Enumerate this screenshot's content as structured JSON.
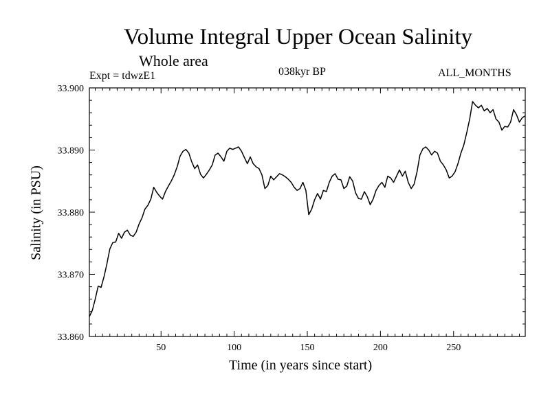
{
  "chart_data": {
    "type": "line",
    "title": "Volume Integral Upper Ocean Salinity",
    "subtitle": "Whole area",
    "experiment": "Expt = tdwzE1",
    "period": "038kyr BP",
    "months": "ALL_MONTHS",
    "xlabel": "Time (in years since start)",
    "ylabel": "Salinity (in PSU)",
    "xlim": [
      1,
      299
    ],
    "ylim": [
      33.86,
      33.9
    ],
    "x_ticks": [
      50,
      100,
      150,
      200,
      250
    ],
    "x_tick_labels": [
      "50",
      "100",
      "150",
      "200",
      "250"
    ],
    "y_ticks": [
      33.86,
      33.87,
      33.88,
      33.89,
      33.9
    ],
    "y_tick_labels": [
      "33.860",
      "33.870",
      "33.880",
      "33.890",
      "33.900"
    ],
    "series": [
      {
        "name": "Salinity",
        "points": [
          [
            1,
            33.8632
          ],
          [
            3,
            33.8642
          ],
          [
            5,
            33.866
          ],
          [
            7,
            33.8681
          ],
          [
            9,
            33.8679
          ],
          [
            11,
            33.8696
          ],
          [
            13,
            33.8717
          ],
          [
            15,
            33.8741
          ],
          [
            17,
            33.8751
          ],
          [
            19,
            33.8752
          ],
          [
            21,
            33.8766
          ],
          [
            23,
            33.8758
          ],
          [
            25,
            33.8768
          ],
          [
            27,
            33.8771
          ],
          [
            29,
            33.8763
          ],
          [
            31,
            33.8761
          ],
          [
            33,
            33.8768
          ],
          [
            35,
            33.8781
          ],
          [
            37,
            33.8791
          ],
          [
            39,
            33.8805
          ],
          [
            41,
            33.8811
          ],
          [
            43,
            33.8821
          ],
          [
            45,
            33.884
          ],
          [
            47,
            33.8832
          ],
          [
            49,
            33.8826
          ],
          [
            51,
            33.8821
          ],
          [
            53,
            33.8833
          ],
          [
            55,
            33.8842
          ],
          [
            57,
            33.885
          ],
          [
            59,
            33.886
          ],
          [
            61,
            33.8873
          ],
          [
            63,
            33.889
          ],
          [
            65,
            33.8898
          ],
          [
            67,
            33.8901
          ],
          [
            69,
            33.8895
          ],
          [
            71,
            33.8881
          ],
          [
            73,
            33.887
          ],
          [
            75,
            33.8876
          ],
          [
            77,
            33.8861
          ],
          [
            79,
            33.8855
          ],
          [
            81,
            33.8861
          ],
          [
            83,
            33.8868
          ],
          [
            85,
            33.8876
          ],
          [
            87,
            33.8892
          ],
          [
            89,
            33.8895
          ],
          [
            91,
            33.8889
          ],
          [
            93,
            33.8882
          ],
          [
            95,
            33.8898
          ],
          [
            97,
            33.8903
          ],
          [
            99,
            33.8901
          ],
          [
            101,
            33.8903
          ],
          [
            103,
            33.8905
          ],
          [
            105,
            33.8898
          ],
          [
            107,
            33.8888
          ],
          [
            109,
            33.8878
          ],
          [
            111,
            33.8889
          ],
          [
            113,
            33.8878
          ],
          [
            115,
            33.8873
          ],
          [
            117,
            33.887
          ],
          [
            119,
            33.886
          ],
          [
            121,
            33.8838
          ],
          [
            123,
            33.8843
          ],
          [
            125,
            33.8858
          ],
          [
            127,
            33.8852
          ],
          [
            129,
            33.8857
          ],
          [
            131,
            33.8862
          ],
          [
            133,
            33.886
          ],
          [
            135,
            33.8857
          ],
          [
            137,
            33.8853
          ],
          [
            139,
            33.8848
          ],
          [
            141,
            33.884
          ],
          [
            143,
            33.8835
          ],
          [
            145,
            33.8838
          ],
          [
            147,
            33.8848
          ],
          [
            149,
            33.8835
          ],
          [
            151,
            33.8796
          ],
          [
            153,
            33.8805
          ],
          [
            155,
            33.882
          ],
          [
            157,
            33.883
          ],
          [
            159,
            33.8821
          ],
          [
            161,
            33.8835
          ],
          [
            163,
            33.8833
          ],
          [
            165,
            33.8848
          ],
          [
            167,
            33.8858
          ],
          [
            169,
            33.8862
          ],
          [
            171,
            33.8853
          ],
          [
            173,
            33.8852
          ],
          [
            175,
            33.8838
          ],
          [
            177,
            33.8842
          ],
          [
            179,
            33.8857
          ],
          [
            181,
            33.885
          ],
          [
            183,
            33.8831
          ],
          [
            185,
            33.8822
          ],
          [
            187,
            33.8821
          ],
          [
            189,
            33.8833
          ],
          [
            191,
            33.8825
          ],
          [
            193,
            33.8812
          ],
          [
            195,
            33.8821
          ],
          [
            197,
            33.8835
          ],
          [
            199,
            33.8843
          ],
          [
            201,
            33.8848
          ],
          [
            203,
            33.884
          ],
          [
            205,
            33.8858
          ],
          [
            207,
            33.8855
          ],
          [
            209,
            33.8848
          ],
          [
            211,
            33.8858
          ],
          [
            213,
            33.8868
          ],
          [
            215,
            33.8858
          ],
          [
            217,
            33.8866
          ],
          [
            219,
            33.8848
          ],
          [
            221,
            33.8838
          ],
          [
            223,
            33.8845
          ],
          [
            225,
            33.8865
          ],
          [
            227,
            33.8892
          ],
          [
            229,
            33.8902
          ],
          [
            231,
            33.8905
          ],
          [
            233,
            33.89
          ],
          [
            235,
            33.8892
          ],
          [
            237,
            33.8898
          ],
          [
            239,
            33.8895
          ],
          [
            241,
            33.8882
          ],
          [
            243,
            33.8876
          ],
          [
            245,
            33.8868
          ],
          [
            247,
            33.8855
          ],
          [
            249,
            33.8858
          ],
          [
            251,
            33.8865
          ],
          [
            253,
            33.8878
          ],
          [
            255,
            33.8895
          ],
          [
            257,
            33.8908
          ],
          [
            259,
            33.8928
          ],
          [
            261,
            33.895
          ],
          [
            263,
            33.8978
          ],
          [
            265,
            33.8972
          ],
          [
            267,
            33.8968
          ],
          [
            269,
            33.8972
          ],
          [
            271,
            33.8963
          ],
          [
            273,
            33.8967
          ],
          [
            275,
            33.896
          ],
          [
            277,
            33.8965
          ],
          [
            279,
            33.895
          ],
          [
            281,
            33.8945
          ],
          [
            283,
            33.8932
          ],
          [
            285,
            33.8938
          ],
          [
            287,
            33.8937
          ],
          [
            289,
            33.8945
          ],
          [
            291,
            33.8965
          ],
          [
            293,
            33.8957
          ],
          [
            295,
            33.8945
          ],
          [
            297,
            33.8952
          ],
          [
            299,
            33.8955
          ]
        ]
      }
    ]
  }
}
